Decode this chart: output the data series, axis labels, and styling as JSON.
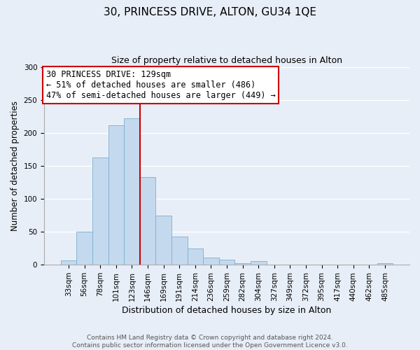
{
  "title": "30, PRINCESS DRIVE, ALTON, GU34 1QE",
  "subtitle": "Size of property relative to detached houses in Alton",
  "xlabel": "Distribution of detached houses by size in Alton",
  "ylabel": "Number of detached properties",
  "bar_labels": [
    "33sqm",
    "56sqm",
    "78sqm",
    "101sqm",
    "123sqm",
    "146sqm",
    "169sqm",
    "191sqm",
    "214sqm",
    "236sqm",
    "259sqm",
    "282sqm",
    "304sqm",
    "327sqm",
    "349sqm",
    "372sqm",
    "395sqm",
    "417sqm",
    "440sqm",
    "462sqm",
    "485sqm"
  ],
  "bar_values": [
    7,
    50,
    163,
    211,
    222,
    133,
    75,
    43,
    25,
    11,
    8,
    2,
    5,
    0,
    0,
    0,
    0,
    0,
    0,
    0,
    2
  ],
  "bar_color": "#c5d9ee",
  "bar_edge_color": "#7aaed0",
  "vline_x_idx": 4,
  "vline_color": "#cc0000",
  "annotation_text": "30 PRINCESS DRIVE: 129sqm\n← 51% of detached houses are smaller (486)\n47% of semi-detached houses are larger (449) →",
  "annotation_box_color": "#ffffff",
  "annotation_box_edge": "#cc0000",
  "ylim": [
    0,
    300
  ],
  "yticks": [
    0,
    50,
    100,
    150,
    200,
    250,
    300
  ],
  "footer_line1": "Contains HM Land Registry data © Crown copyright and database right 2024.",
  "footer_line2": "Contains public sector information licensed under the Open Government Licence v3.0.",
  "bg_color": "#e8eef7",
  "plot_bg_color": "#e8eef7",
  "grid_color": "#ffffff",
  "title_fontsize": 11,
  "subtitle_fontsize": 9,
  "ylabel_fontsize": 8.5,
  "xlabel_fontsize": 9,
  "tick_fontsize": 7.5,
  "annotation_fontsize": 8.5,
  "footer_fontsize": 6.5
}
